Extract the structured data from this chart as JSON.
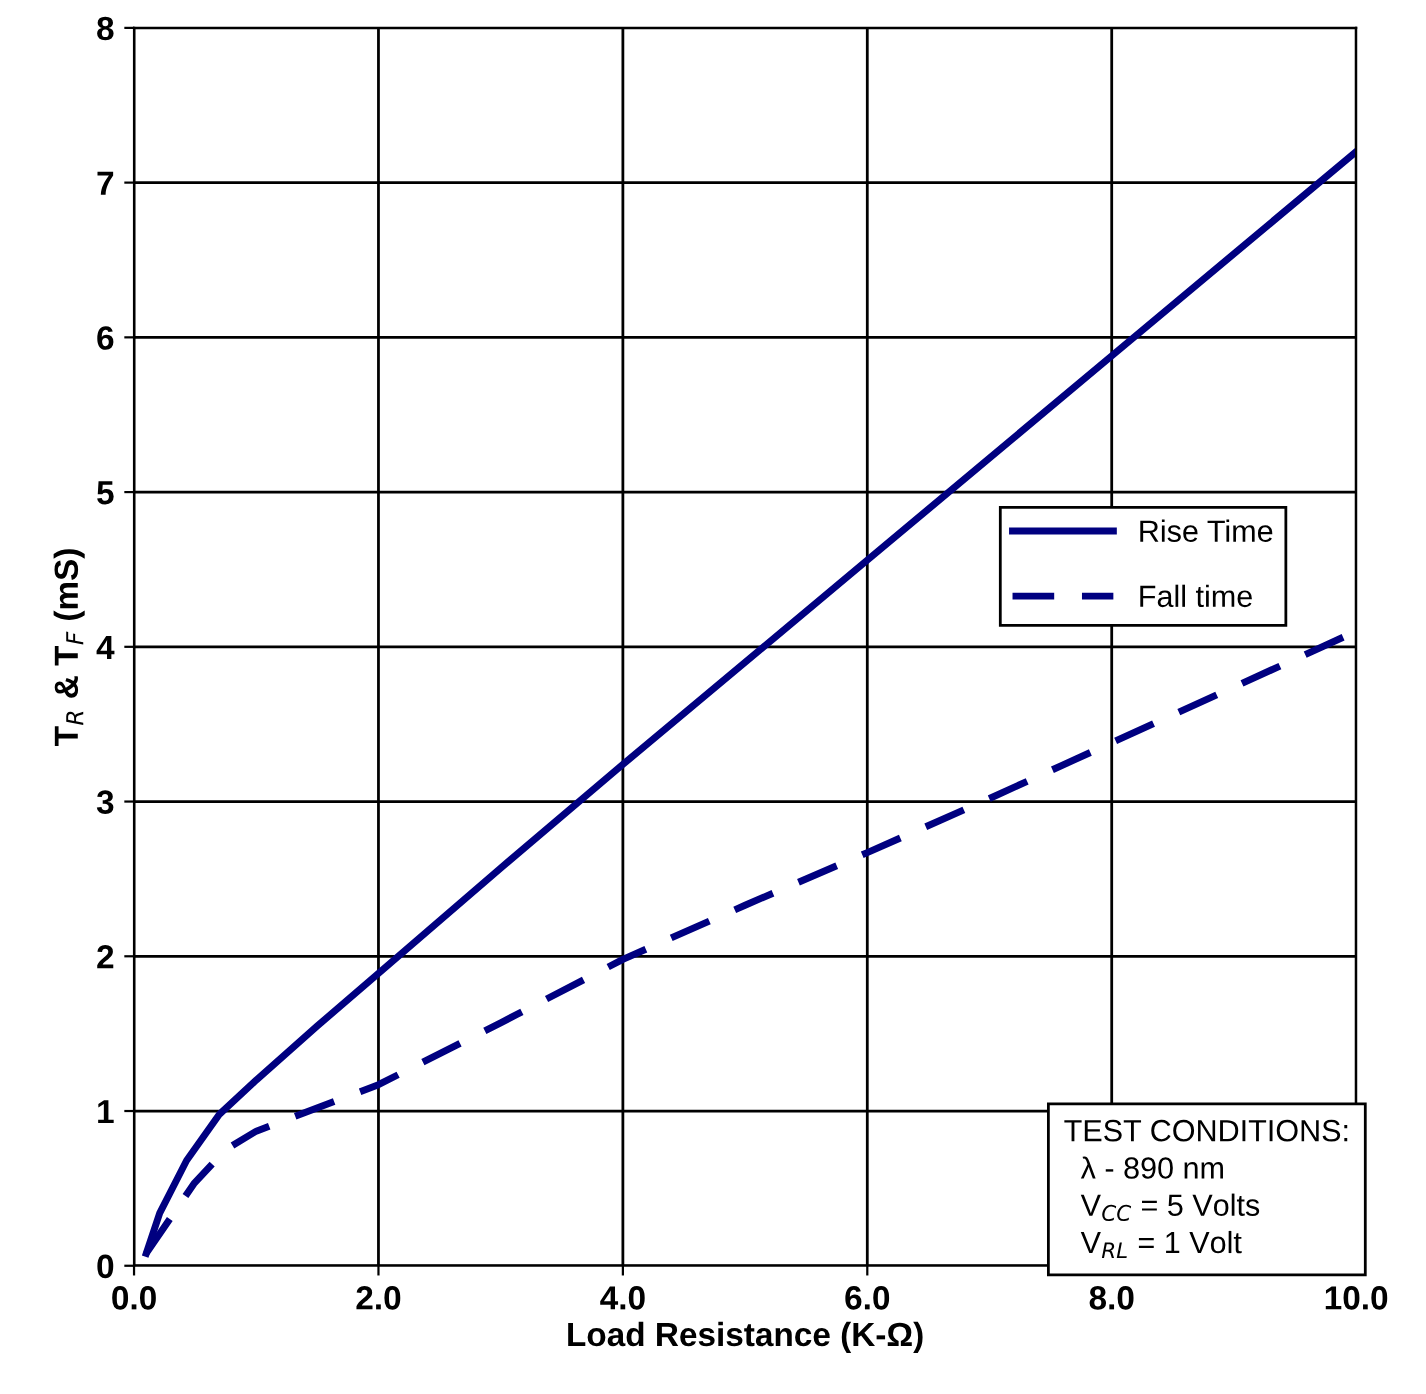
{
  "chart_data": {
    "type": "line",
    "xlabel": "Load Resistance (K-Ω)",
    "ylabel": "T$_{R}$ & T$_{F}$ (mS)",
    "xlim": [
      0,
      10
    ],
    "ylim": [
      0,
      8
    ],
    "xticks": [
      {
        "value": 0,
        "label": "0.0"
      },
      {
        "value": 2,
        "label": "2.0"
      },
      {
        "value": 4,
        "label": "4.0"
      },
      {
        "value": 6,
        "label": "6.0"
      },
      {
        "value": 8,
        "label": "8.0"
      },
      {
        "value": 10,
        "label": "10.0"
      }
    ],
    "yticks": [
      0,
      1,
      2,
      3,
      4,
      5,
      6,
      7,
      8
    ],
    "grid": true,
    "legend": "center right",
    "marker": "none",
    "series": [
      {
        "name": "Rise Time",
        "color": "#000080",
        "line_style": "solid",
        "x": [
          0.1,
          0.21,
          0.43,
          0.7,
          1.0,
          1.5,
          2.0,
          3.0,
          4.0,
          6.0,
          8.0,
          10.0
        ],
        "values": [
          0.08,
          0.34,
          0.68,
          0.98,
          1.2,
          1.55,
          1.89,
          2.57,
          3.24,
          4.56,
          5.88,
          7.2
        ]
      },
      {
        "name": "Fall time",
        "color": "#000080",
        "line_style": "dashed",
        "x": [
          0.1,
          0.49,
          0.75,
          1.0,
          2.0,
          3.0,
          4.0,
          5.0,
          6.0,
          7.0,
          8.0,
          9.0,
          10.0
        ],
        "values": [
          0.08,
          0.53,
          0.75,
          0.87,
          1.17,
          1.57,
          1.98,
          2.33,
          2.67,
          3.02,
          3.38,
          3.74,
          4.1
        ]
      }
    ],
    "annotations": [
      "TEST CONDITIONS:\n  λ - 890 nm\n  V$_{CC}$ = 5 Volts\n  V$_{RL}$ = 1 Volt"
    ]
  }
}
